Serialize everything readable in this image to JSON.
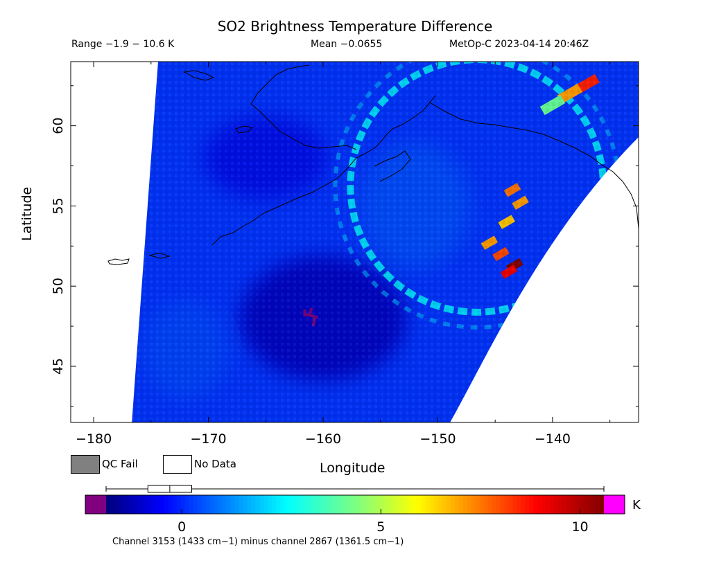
{
  "header": {
    "title": "SO2 Brightness Temperature Difference",
    "range": "Range −1.9 − 10.6 K",
    "mean": "Mean −0.0655",
    "satellite_time": "MetOp-C 2023-04-14 20:46Z"
  },
  "legend": {
    "qc_fail": "QC Fail",
    "no_data": "No Data",
    "qc_fail_color": "#808080",
    "no_data_color": "#ffffff"
  },
  "colorbar": {
    "unit": "K",
    "ticks": [
      {
        "value": 0,
        "label": "0"
      },
      {
        "value": 5,
        "label": "5"
      },
      {
        "value": 10,
        "label": "10"
      }
    ],
    "range": [
      -1.9,
      10.6
    ],
    "underflow_color": "#800080",
    "overflow_color": "#ff00ff",
    "boxplot": {
      "min": -1.9,
      "q1": -0.85,
      "median": -0.3,
      "q3": 0.25,
      "max": 10.6
    },
    "footnote": "Channel 3153 (1433 cm−1) minus channel 2867 (1361.5 cm−1)"
  },
  "chart_data": {
    "type": "heatmap",
    "title": "SO2 Brightness Temperature Difference",
    "xlabel": "Longitude",
    "ylabel": "Latitude",
    "xlim": [
      -182,
      -132.5
    ],
    "ylim": [
      41.5,
      64
    ],
    "x_ticks": [
      {
        "value": -180,
        "label": "−180"
      },
      {
        "value": -170,
        "label": "−170"
      },
      {
        "value": -160,
        "label": "−160"
      },
      {
        "value": -150,
        "label": "−150"
      },
      {
        "value": -140,
        "label": "−140"
      }
    ],
    "y_ticks": [
      {
        "value": 45,
        "label": "45"
      },
      {
        "value": 50,
        "label": "50"
      },
      {
        "value": 55,
        "label": "55"
      },
      {
        "value": 60,
        "label": "60"
      }
    ],
    "value_range": [
      -1.9,
      10.6
    ],
    "mean": -0.0655,
    "unit": "K",
    "features": [
      {
        "kind": "ring",
        "lon_center": -160.5,
        "lat_center": 61,
        "radius_deg": 16,
        "value": 2.5
      },
      {
        "kind": "plume",
        "lon": -137,
        "lat": 62.6,
        "value": 8.5
      },
      {
        "kind": "plume",
        "lon": -138.5,
        "lat": 62.0,
        "value": 7.0
      },
      {
        "kind": "plume",
        "lon": -140,
        "lat": 61.3,
        "value": 4.0
      },
      {
        "kind": "hotspot",
        "lon": -143.5,
        "lat": 56.0,
        "value": 7.5
      },
      {
        "kind": "hotspot",
        "lon": -142.8,
        "lat": 55.2,
        "value": 7.0
      },
      {
        "kind": "hotspot",
        "lon": -144.0,
        "lat": 54.0,
        "value": 6.5
      },
      {
        "kind": "hotspot",
        "lon": -145.5,
        "lat": 52.7,
        "value": 7.0
      },
      {
        "kind": "hotspot",
        "lon": -144.5,
        "lat": 52.0,
        "value": 8.0
      },
      {
        "kind": "hotspot",
        "lon": -143.3,
        "lat": 51.3,
        "value": 10.6
      },
      {
        "kind": "hotspot",
        "lon": -143.8,
        "lat": 50.9,
        "value": 9.0
      },
      {
        "kind": "low_region",
        "lon": -160,
        "lat": 48,
        "value": -1.2
      },
      {
        "kind": "underflow",
        "lon": -161,
        "lat": 48.2,
        "value": -1.9
      }
    ]
  }
}
